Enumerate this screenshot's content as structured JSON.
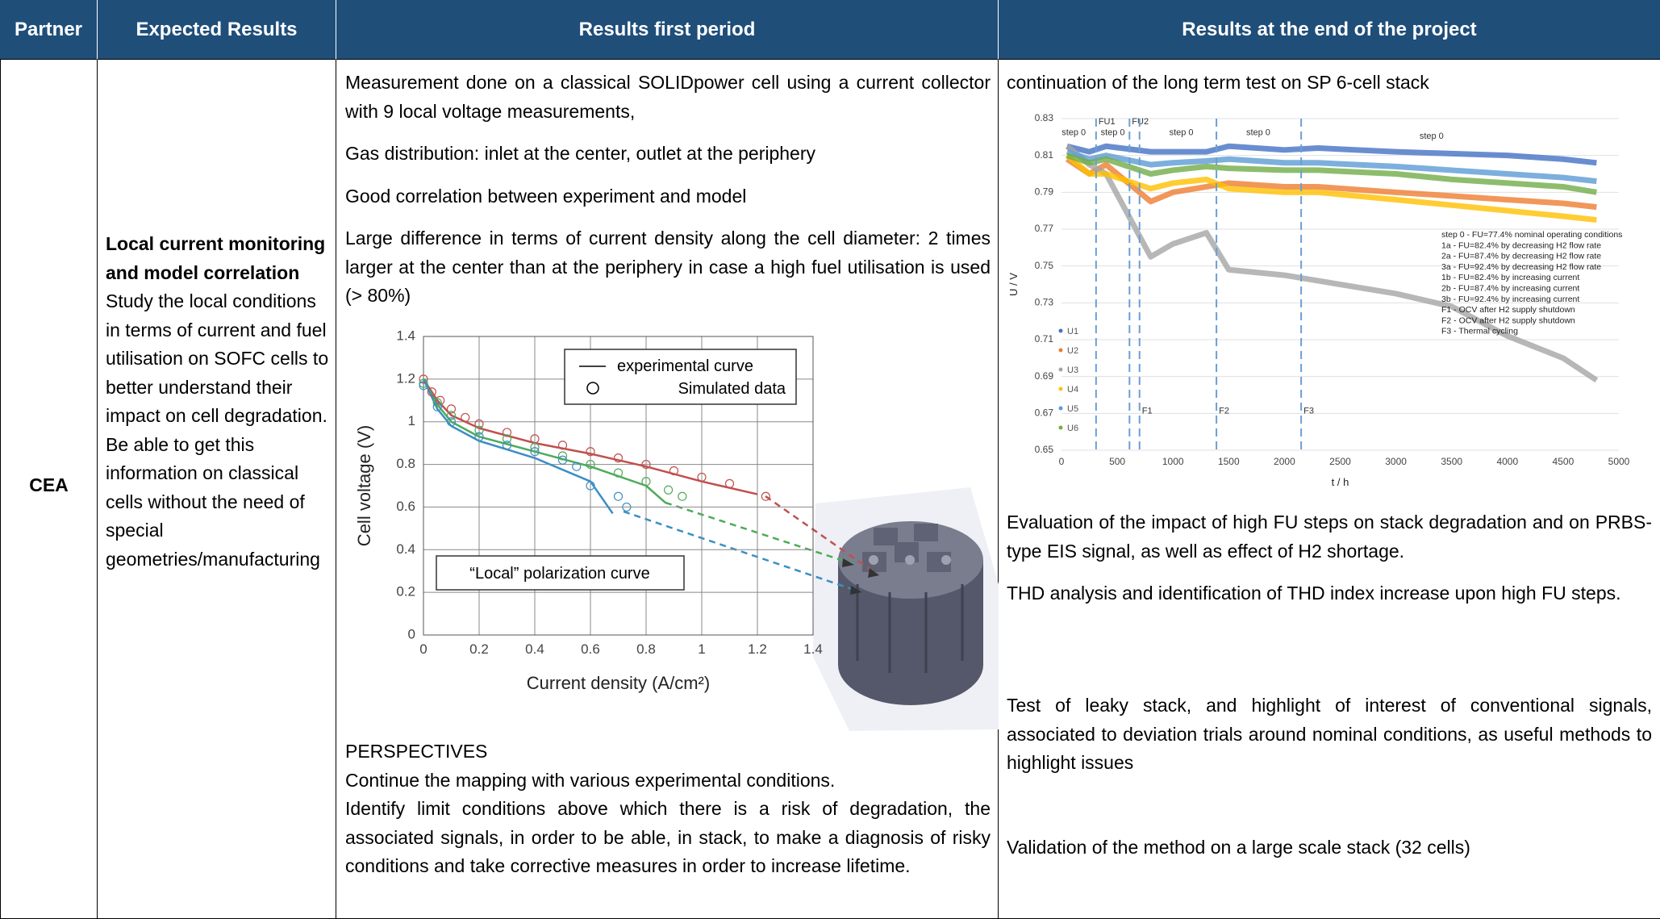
{
  "table": {
    "header": [
      "Partner",
      "Expected Results",
      "Results first period",
      "Results at the end of the project"
    ],
    "rows": [
      {
        "partner": "CEA",
        "expected": {
          "title": "Local current monitoring and model correlation",
          "text": [
            "Study the local conditions in terms of current and fuel utilisation on SOFC cells to better understand their impact on cell degradation.",
            "Be able to get this information on classical cells without the need of special geometries/manufacturing"
          ]
        },
        "first_period": {
          "paragraphs": [
            "Measurement done on a classical SOLIDpower cell using a current collector with 9 local voltage measurements,",
            "Gas distribution: inlet at the center, outlet at the periphery",
            "Good correlation between experiment and model",
            "Large difference in terms of current density along the cell diameter: 2 times larger at the center than at the periphery in case a high fuel utilisation is used (> 80%)"
          ],
          "perspectives": {
            "title": "PERSPECTIVES",
            "items": [
              "Continue the mapping with various experimental conditions.",
              "Identify limit conditions above which there is a risk of degradation, the associated signals, in order to be able, in stack, to make a diagnosis of risky conditions and take corrective measures in order to increase lifetime."
            ]
          }
        },
        "end_of_project": {
          "paragraphs": [
            "continuation of the long term test on SP 6-cell stack",
            "Evaluation of the impact of high FU steps on stack degradation and on PRBS-type EIS signal, as well as effect of H2 shortage.",
            "THD analysis and identification of THD index increase upon high FU steps.",
            "Test of leaky stack, and highlight of interest of conventional signals, associated to deviation trials around nominal conditions, as useful methods to highlight issues",
            "Validation of the method on a large scale stack (32 cells)"
          ]
        }
      }
    ]
  },
  "chart_data": [
    {
      "type": "line",
      "xlabel": "Current density (A/cm²)",
      "ylabel": "Cell voltage (V)",
      "xlim": [
        0,
        1.4
      ],
      "xticks": [
        0,
        0.2,
        0.4,
        0.6,
        0.8,
        1,
        1.2,
        1.4
      ],
      "ylim": [
        0,
        1.4
      ],
      "yticks": [
        0,
        0.2,
        0.4,
        0.6,
        0.8,
        1,
        1.2,
        1.4
      ],
      "grid": true,
      "xgrid": true,
      "legend": [
        "experimental curve",
        "Simulated data"
      ],
      "annotation": "“Local” polarization curve",
      "series": [
        {
          "color": "#c0504d",
          "x": [
            0,
            0.05,
            0.1,
            0.2,
            0.4,
            0.6,
            0.8,
            1.0,
            1.2
          ],
          "values": [
            1.2,
            1.1,
            1.03,
            0.97,
            0.9,
            0.85,
            0.79,
            0.72,
            0.66
          ]
        },
        {
          "color": "#4faa5a",
          "x": [
            0,
            0.05,
            0.1,
            0.2,
            0.4,
            0.6,
            0.8,
            0.87
          ],
          "values": [
            1.2,
            1.08,
            1.0,
            0.93,
            0.86,
            0.79,
            0.7,
            0.62
          ]
        },
        {
          "color": "#3b8fc4",
          "x": [
            0,
            0.05,
            0.1,
            0.2,
            0.4,
            0.6,
            0.68
          ],
          "values": [
            1.2,
            1.06,
            0.98,
            0.91,
            0.83,
            0.72,
            0.57
          ]
        }
      ],
      "simulated": [
        {
          "color": "#c0504d",
          "x": [
            0,
            0.03,
            0.06,
            0.1,
            0.15,
            0.2,
            0.3,
            0.4,
            0.5,
            0.6,
            0.7,
            0.8,
            0.9,
            1.0,
            1.1,
            1.23
          ],
          "values": [
            1.2,
            1.14,
            1.1,
            1.06,
            1.02,
            0.99,
            0.95,
            0.92,
            0.89,
            0.86,
            0.83,
            0.8,
            0.77,
            0.74,
            0.71,
            0.65
          ]
        },
        {
          "color": "#4faa5a",
          "x": [
            0,
            0.05,
            0.1,
            0.2,
            0.3,
            0.4,
            0.5,
            0.6,
            0.7,
            0.8,
            0.88,
            0.93
          ],
          "values": [
            1.18,
            1.09,
            1.03,
            0.96,
            0.92,
            0.88,
            0.84,
            0.8,
            0.76,
            0.72,
            0.68,
            0.65
          ]
        },
        {
          "color": "#3b8fc4",
          "x": [
            0,
            0.05,
            0.1,
            0.2,
            0.3,
            0.4,
            0.5,
            0.55,
            0.6,
            0.7,
            0.73
          ],
          "values": [
            1.17,
            1.07,
            1.0,
            0.93,
            0.89,
            0.86,
            0.82,
            0.79,
            0.7,
            0.65,
            0.6
          ]
        }
      ]
    },
    {
      "type": "line",
      "xlabel": "t / h",
      "ylabel": "U / V",
      "xlim": [
        0,
        5000
      ],
      "xticks": [
        0,
        500,
        1000,
        1500,
        2000,
        2500,
        3000,
        3500,
        4000,
        4500,
        5000
      ],
      "ylim": [
        0.65,
        0.83
      ],
      "yticks": [
        0.65,
        0.67,
        0.69,
        0.71,
        0.73,
        0.75,
        0.77,
        0.79,
        0.81,
        0.83
      ],
      "grid": true,
      "x": [
        50,
        250,
        400,
        800,
        1000,
        1300,
        1500,
        2000,
        2300,
        3000,
        3500,
        4000,
        4500,
        4800
      ],
      "series": [
        {
          "name": "U1",
          "color": "#4472c4",
          "values": [
            0.815,
            0.812,
            0.815,
            0.812,
            0.812,
            0.812,
            0.815,
            0.813,
            0.814,
            0.812,
            0.811,
            0.81,
            0.808,
            0.806
          ]
        },
        {
          "name": "U2",
          "color": "#ed7d31",
          "values": [
            0.808,
            0.8,
            0.805,
            0.785,
            0.79,
            0.793,
            0.795,
            0.793,
            0.793,
            0.79,
            0.788,
            0.786,
            0.784,
            0.782
          ]
        },
        {
          "name": "U3",
          "color": "#a5a5a5",
          "values": [
            0.815,
            0.805,
            0.8,
            0.755,
            0.762,
            0.768,
            0.748,
            0.745,
            0.742,
            0.735,
            0.728,
            0.712,
            0.7,
            0.688
          ]
        },
        {
          "name": "U4",
          "color": "#ffc000",
          "values": [
            0.81,
            0.8,
            0.8,
            0.792,
            0.795,
            0.797,
            0.792,
            0.79,
            0.79,
            0.786,
            0.783,
            0.78,
            0.777,
            0.775
          ]
        },
        {
          "name": "U5",
          "color": "#5b9bd5",
          "values": [
            0.812,
            0.808,
            0.81,
            0.805,
            0.806,
            0.807,
            0.808,
            0.806,
            0.806,
            0.804,
            0.802,
            0.8,
            0.798,
            0.796
          ]
        },
        {
          "name": "U6",
          "color": "#70ad47",
          "values": [
            0.81,
            0.806,
            0.808,
            0.8,
            0.802,
            0.804,
            0.803,
            0.802,
            0.802,
            0.8,
            0.797,
            0.795,
            0.793,
            0.79
          ]
        }
      ],
      "annotations": [
        {
          "text": "step 0",
          "x": 110,
          "y": 0.821
        },
        {
          "text": "step 0",
          "x": 460,
          "y": 0.821
        },
        {
          "text": "step 0",
          "x": 1075,
          "y": 0.821
        },
        {
          "text": "step 0",
          "x": 1765,
          "y": 0.821
        },
        {
          "text": "step 0",
          "x": 3320,
          "y": 0.819
        }
      ],
      "events": [
        {
          "text": "FU1",
          "x": 310,
          "y": 0.827
        },
        {
          "text": "FU2",
          "x": 610,
          "y": 0.827
        },
        {
          "text": "F1",
          "x": 700,
          "y": 0.67
        },
        {
          "text": "F2",
          "x": 1390,
          "y": 0.67
        },
        {
          "text": "F3",
          "x": 2150,
          "y": 0.67
        }
      ],
      "notes": [
        "step 0 - FU=77.4% nominal operating conditions",
        "1a - FU=82.4% by decreasing H2 flow rate",
        "2a - FU=87.4% by decreasing H2 flow rate",
        "3a - FU=92.4% by decreasing H2 flow rate",
        "1b - FU=82.4% by increasing current",
        "2b - FU=87.4% by increasing current",
        "3b - FU=92.4% by increasing current",
        "F1 - OCV after H2 supply shutdown",
        "F2 - OCV after H2 supply shutdown",
        "F3 - Thermal cycling"
      ]
    }
  ]
}
